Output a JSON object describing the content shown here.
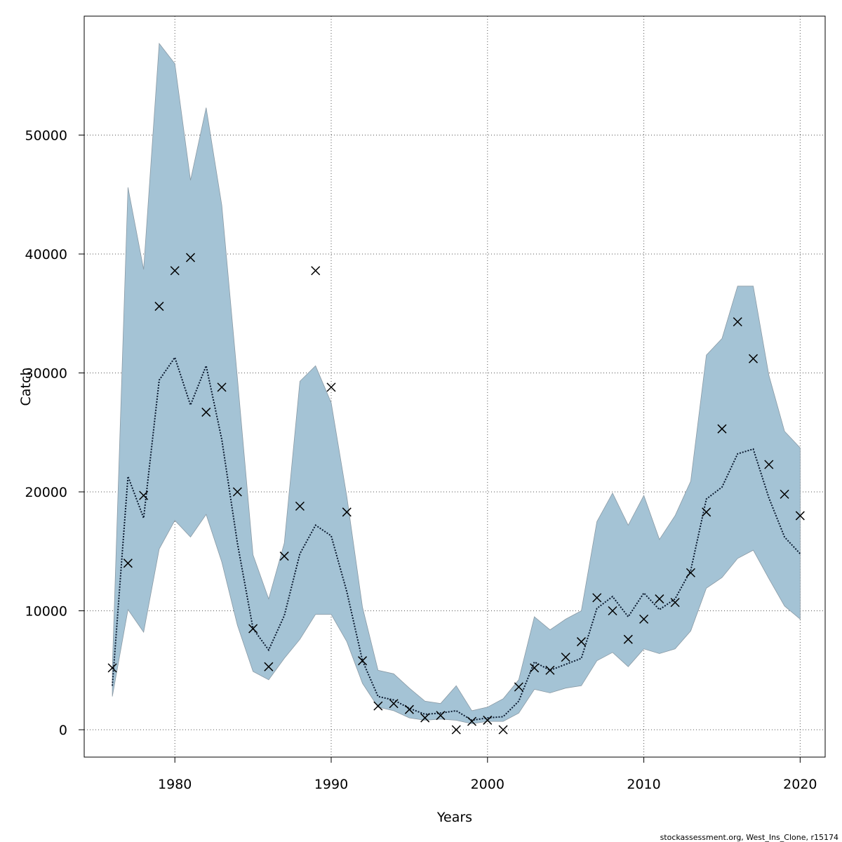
{
  "chart_data": {
    "type": "line",
    "xlabel": "Years",
    "ylabel": "Catch",
    "xlim": [
      1974.2,
      2021.6
    ],
    "ylim": [
      -2300,
      60000
    ],
    "x_ticks": [
      1980,
      1990,
      2000,
      2010,
      2020
    ],
    "y_ticks": [
      0,
      10000,
      20000,
      30000,
      40000,
      50000
    ],
    "grid": true,
    "colors": {
      "band": "#a4c3d5",
      "band_edge": "#8a9aa5",
      "line": "#0a1a30",
      "points": "#000000"
    },
    "series": [
      {
        "kind": "interval_band",
        "x": [
          1976,
          1977,
          1978,
          1979,
          1980,
          1981,
          1982,
          1983,
          1984,
          1985,
          1986,
          1987,
          1988,
          1989,
          1990,
          1991,
          1992,
          1993,
          1994,
          1995,
          1996,
          1997,
          1998,
          1999,
          2000,
          2001,
          2002,
          2003,
          2004,
          2005,
          2006,
          2007,
          2008,
          2009,
          2010,
          2011,
          2012,
          2013,
          2014,
          2015,
          2016,
          2017,
          2018,
          2019,
          2020
        ],
        "upper": [
          5200,
          45600,
          38700,
          57700,
          56000,
          46200,
          52300,
          44100,
          29600,
          14700,
          11000,
          15700,
          29300,
          30600,
          27500,
          19600,
          10300,
          5000,
          4700,
          3500,
          2400,
          2200,
          3700,
          1600,
          1900,
          2600,
          4200,
          9500,
          8400,
          9300,
          10000,
          17500,
          19900,
          17200,
          19700,
          16000,
          18000,
          20900,
          31500,
          32900,
          37300,
          37300,
          29800,
          25100,
          23700
        ],
        "lower": [
          2800,
          10100,
          8200,
          15200,
          17600,
          16200,
          18100,
          14100,
          8800,
          4900,
          4200,
          6000,
          7600,
          9700,
          9700,
          7400,
          3900,
          1900,
          1600,
          1000,
          800,
          900,
          800,
          500,
          700,
          700,
          1400,
          3400,
          3100,
          3500,
          3700,
          5800,
          6500,
          5300,
          6800,
          6400,
          6800,
          8300,
          11900,
          12800,
          14400,
          15100,
          12700,
          10400,
          9300
        ]
      },
      {
        "kind": "median_line",
        "x": [
          1976,
          1977,
          1978,
          1979,
          1980,
          1981,
          1982,
          1983,
          1984,
          1985,
          1986,
          1987,
          1988,
          1989,
          1990,
          1991,
          1992,
          1993,
          1994,
          1995,
          1996,
          1997,
          1998,
          1999,
          2000,
          2001,
          2002,
          2003,
          2004,
          2005,
          2006,
          2007,
          2008,
          2009,
          2010,
          2011,
          2012,
          2013,
          2014,
          2015,
          2016,
          2017,
          2018,
          2019,
          2020
        ],
        "values": [
          3700,
          21300,
          17800,
          29400,
          31300,
          27300,
          30600,
          24400,
          15700,
          8500,
          6700,
          9600,
          14800,
          17200,
          16300,
          11600,
          5800,
          2800,
          2500,
          1800,
          1300,
          1400,
          1600,
          800,
          1000,
          1100,
          2400,
          5700,
          5000,
          5500,
          6000,
          10200,
          11200,
          9500,
          11500,
          10100,
          11000,
          13400,
          19400,
          20400,
          23200,
          23600,
          19500,
          16200,
          14800
        ]
      },
      {
        "kind": "observed_points",
        "marker": "x",
        "x": [
          1976,
          1977,
          1978,
          1979,
          1980,
          1981,
          1982,
          1983,
          1984,
          1985,
          1986,
          1987,
          1988,
          1989,
          1990,
          1991,
          1992,
          1993,
          1994,
          1995,
          1996,
          1997,
          1998,
          1999,
          2000,
          2001,
          2002,
          2003,
          2004,
          2005,
          2006,
          2007,
          2008,
          2009,
          2010,
          2011,
          2012,
          2013,
          2014,
          2015,
          2016,
          2017,
          2018,
          2019,
          2020
        ],
        "values": [
          5200,
          14000,
          19700,
          35600,
          38600,
          39700,
          26700,
          28800,
          20000,
          8500,
          5300,
          14600,
          18800,
          38600,
          28800,
          18300,
          5800,
          2000,
          2200,
          1700,
          1000,
          1200,
          0,
          700,
          800,
          0,
          3600,
          5200,
          5000,
          6100,
          7400,
          11100,
          10000,
          7600,
          9300,
          11000,
          10700,
          13200,
          18300,
          25300,
          34300,
          31200,
          22300,
          19800,
          18000
        ]
      }
    ]
  },
  "footer": {
    "credit": "stockassessment.org, West_Ins_Clone, r15174"
  }
}
